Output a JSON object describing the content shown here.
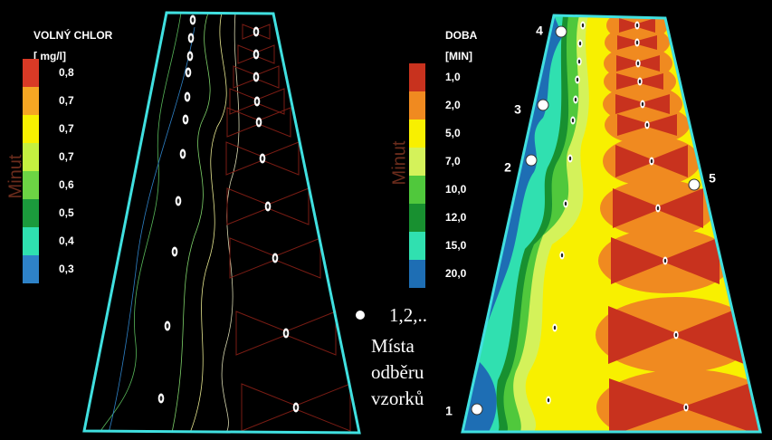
{
  "left_panel": {
    "legend": {
      "title": "VOLNÝ CHLOR",
      "unit": "[ mg/l]",
      "items": [
        {
          "label": "0,8",
          "color": "#d93a26"
        },
        {
          "label": "0,7",
          "color": "#f5a623"
        },
        {
          "label": "0,7",
          "color": "#f7f000"
        },
        {
          "label": "0,7",
          "color": "#c4f040"
        },
        {
          "label": "0,6",
          "color": "#6cd444"
        },
        {
          "label": "0,5",
          "color": "#1b9a3c"
        },
        {
          "label": "0,4",
          "color": "#2fe0b0"
        },
        {
          "label": "0,3",
          "color": "#2e82c8"
        }
      ]
    },
    "axis_word": "Minut"
  },
  "right_panel": {
    "legend": {
      "title": "DOBA",
      "unit": "[MIN]",
      "items": [
        {
          "label": "1,0",
          "color": "#c8321e"
        },
        {
          "label": "2,0",
          "color": "#f08a20"
        },
        {
          "label": "5,0",
          "color": "#f8f000"
        },
        {
          "label": "7,0",
          "color": "#d4f25a"
        },
        {
          "label": "10,0",
          "color": "#50c83c"
        },
        {
          "label": "12,0",
          "color": "#189030"
        },
        {
          "label": "15,0",
          "color": "#30e0b0"
        },
        {
          "label": "20,0",
          "color": "#1e6eb4"
        }
      ]
    },
    "axis_word": "Minut",
    "points": [
      "4",
      "3",
      "2",
      "1",
      "5"
    ]
  },
  "annotation": {
    "lines": [
      "1,2,..",
      "Místa",
      "odběru",
      "vzorků"
    ]
  }
}
